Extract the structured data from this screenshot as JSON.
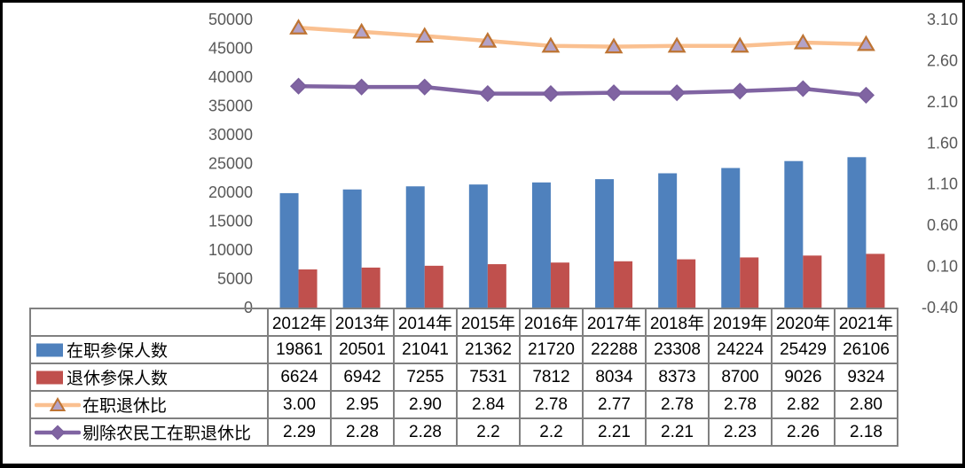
{
  "chart_data": {
    "type": "combo-bar-line",
    "title": "",
    "categories": [
      "2012年",
      "2013年",
      "2014年",
      "2015年",
      "2016年",
      "2017年",
      "2018年",
      "2019年",
      "2020年",
      "2021年"
    ],
    "series": [
      {
        "name": "在职参保人数",
        "type": "bar",
        "axis": "left",
        "color": "#4F81BD",
        "values": [
          19861,
          20501,
          21041,
          21362,
          21720,
          22288,
          23308,
          24224,
          25429,
          26106
        ],
        "labels": [
          "19861",
          "20501",
          "21041",
          "21362",
          "21720",
          "22288",
          "23308",
          "24224",
          "25429",
          "26106"
        ]
      },
      {
        "name": "退休参保人数",
        "type": "bar",
        "axis": "left",
        "color": "#C0504D",
        "values": [
          6624,
          6942,
          7255,
          7531,
          7812,
          8034,
          8373,
          8700,
          9026,
          9324
        ],
        "labels": [
          "6624",
          "6942",
          "7255",
          "7531",
          "7812",
          "8034",
          "8373",
          "8700",
          "9026",
          "9324"
        ]
      },
      {
        "name": "在职退休比",
        "type": "line",
        "axis": "right",
        "color": "#FAC090",
        "marker": "triangle",
        "marker_fill": "#B3A2C7",
        "marker_stroke": "#BE7433",
        "values": [
          3.0,
          2.95,
          2.9,
          2.84,
          2.78,
          2.77,
          2.78,
          2.78,
          2.82,
          2.8
        ],
        "labels": [
          "3.00",
          "2.95",
          "2.90",
          "2.84",
          "2.78",
          "2.77",
          "2.78",
          "2.78",
          "2.82",
          "2.80"
        ]
      },
      {
        "name": "剔除农民工在职退休比",
        "type": "line",
        "axis": "right",
        "color": "#8064A2",
        "marker": "diamond",
        "marker_fill": "#8064A2",
        "marker_stroke": "#7A5F9D",
        "values": [
          2.29,
          2.28,
          2.28,
          2.2,
          2.2,
          2.21,
          2.21,
          2.23,
          2.26,
          2.18
        ],
        "labels": [
          "2.29",
          "2.28",
          "2.28",
          "2.2",
          "2.2",
          "2.21",
          "2.21",
          "2.23",
          "2.26",
          "2.18"
        ]
      }
    ],
    "left_axis": {
      "min": 0,
      "max": 50000,
      "step": 5000,
      "ticks": [
        "50000",
        "45000",
        "40000",
        "35000",
        "30000",
        "25000",
        "20000",
        "15000",
        "10000",
        "5000",
        "0"
      ]
    },
    "right_axis": {
      "min": -0.4,
      "max": 3.1,
      "step": 0.5,
      "ticks": [
        "3.10",
        "2.60",
        "2.10",
        "1.60",
        "1.10",
        "0.60",
        "0.10",
        "-0.40"
      ]
    },
    "grid": false,
    "legend_position": "data-table-left",
    "colors": {
      "axis_text": "#595959",
      "table_border": "#808080",
      "table_text": "#000000",
      "background": "#FFFFFF",
      "frame_border": "#000000"
    }
  }
}
